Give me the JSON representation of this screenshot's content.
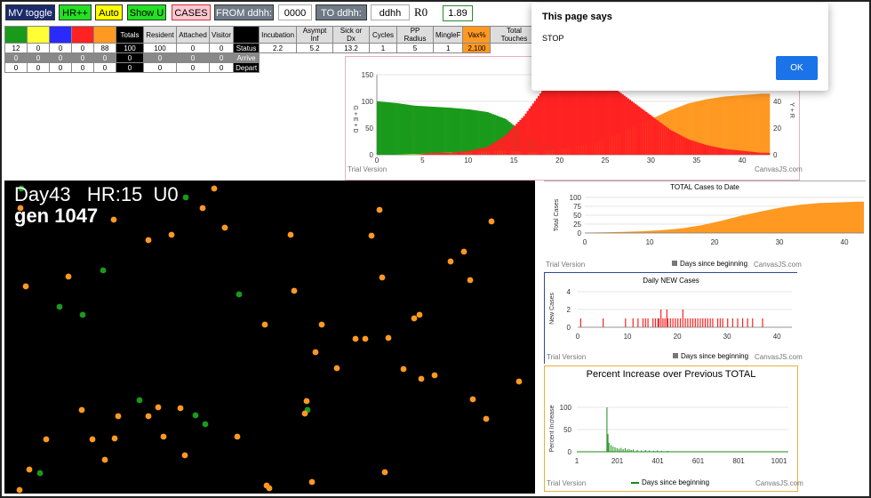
{
  "toolbar": {
    "mv_toggle": "MV toggle",
    "hr_plus": "HR++",
    "auto": "Auto",
    "show_u": "Show U",
    "cases": "CASES",
    "from_label": "FROM ddhh:",
    "from_value": "0000",
    "to_label": "TO ddhh:",
    "to_value": "ddhh",
    "r0_label": "R0",
    "r0_value": "1.89"
  },
  "stats": {
    "header": [
      "",
      "",
      "",
      "",
      "",
      "Totals",
      "Resident",
      "Attached",
      "Visitor",
      "",
      "Incubation",
      "Asympt Inf",
      "Sick or Dx",
      "Cycles",
      "PP Radius",
      "MingleF",
      "Vax%",
      "Total Touches"
    ],
    "row1": [
      "12",
      "0",
      "0",
      "0",
      "88",
      "100",
      "100",
      "0",
      "0",
      "Status",
      "2.2",
      "5.2",
      "13.2",
      "1",
      "5",
      "1",
      "2,100",
      ""
    ],
    "row2": [
      "0",
      "0",
      "0",
      "0",
      "0",
      "0",
      "0",
      "0",
      "0",
      "Arrive"
    ],
    "row3": [
      "0",
      "0",
      "0",
      "0",
      "0",
      "0",
      "0",
      "0",
      "0",
      "Depart"
    ]
  },
  "sim": {
    "day_line": "Day43   HR:15  U0",
    "gen_line": "gen 1047"
  },
  "dialog": {
    "title": "This page says",
    "message": "STOP",
    "ok": "OK"
  },
  "colors": {
    "green": "#1a9a1a",
    "yellow": "#ffff33",
    "red": "#ff2222",
    "orange": "#ff9922",
    "ok_blue": "#1a73e8"
  },
  "chart_data": [
    {
      "type": "area",
      "title": "",
      "xlabel": "",
      "ylabel_left": "G + E + D",
      "ylabel_right": "Y + R",
      "xlim": [
        0,
        43
      ],
      "ylim_left": [
        0,
        150
      ],
      "ylim_right": [
        0,
        60
      ],
      "xticks": [
        "0",
        "5",
        "10",
        "15",
        "20",
        "25",
        "30",
        "35",
        "40"
      ],
      "yticks_left": [
        "0",
        "50",
        "100",
        "150"
      ],
      "yticks_right": [
        "0",
        "20",
        "40"
      ],
      "series": [
        {
          "name": "green",
          "x": [
            0,
            2,
            4,
            6,
            8,
            10,
            12,
            14,
            16,
            18,
            20,
            22,
            24,
            26,
            28,
            30,
            32,
            34,
            36,
            38,
            40,
            42,
            43
          ],
          "values": [
            100,
            97,
            92,
            90,
            88,
            85,
            80,
            67,
            40,
            20,
            8,
            3,
            1,
            0,
            0,
            0,
            0,
            0,
            0,
            0,
            0,
            0,
            0
          ]
        },
        {
          "name": "yellow",
          "x": [
            0,
            2,
            4,
            6,
            8,
            10,
            12,
            14,
            16,
            18,
            20,
            22,
            24,
            26,
            28,
            30,
            32,
            34,
            36,
            38,
            40,
            42,
            43
          ],
          "values": [
            0,
            0,
            1,
            3,
            4,
            5,
            6,
            8,
            5,
            3,
            2,
            1,
            0,
            0,
            0,
            0,
            0,
            0,
            0,
            0,
            0,
            0,
            0
          ]
        },
        {
          "name": "red",
          "x": [
            0,
            2,
            4,
            6,
            8,
            10,
            12,
            14,
            16,
            18,
            20,
            22,
            24,
            26,
            28,
            30,
            32,
            34,
            36,
            38,
            40,
            42,
            43
          ],
          "values": [
            0,
            0,
            0,
            1,
            1,
            2,
            4,
            10,
            20,
            33,
            38,
            40,
            38,
            34,
            27,
            20,
            13,
            8,
            5,
            3,
            2,
            1,
            1
          ]
        },
        {
          "name": "orange",
          "x": [
            0,
            2,
            4,
            6,
            8,
            10,
            12,
            14,
            16,
            18,
            20,
            22,
            24,
            26,
            28,
            30,
            32,
            34,
            36,
            38,
            40,
            42,
            43
          ],
          "values": [
            0,
            0,
            0,
            0,
            0,
            0,
            1,
            2,
            3,
            5,
            8,
            12,
            18,
            28,
            40,
            52,
            64,
            74,
            80,
            84,
            86,
            88,
            88
          ]
        }
      ],
      "watermark": "Trial Version",
      "credit": "CanvasJS.com"
    },
    {
      "type": "area",
      "title": "TOTAL Cases to Date",
      "xlabel": "Days since beginning",
      "ylabel": "Total Cases",
      "xlim": [
        0,
        43
      ],
      "ylim": [
        0,
        100
      ],
      "xticks": [
        "0",
        "10",
        "20",
        "30",
        "40"
      ],
      "yticks": [
        "0",
        "25",
        "50",
        "75",
        "100"
      ],
      "x": [
        0,
        3,
        6,
        9,
        12,
        15,
        18,
        21,
        24,
        27,
        30,
        33,
        36,
        39,
        42,
        43
      ],
      "values": [
        1,
        2,
        3,
        5,
        8,
        13,
        22,
        34,
        48,
        60,
        71,
        79,
        84,
        86,
        88,
        88
      ],
      "watermark": "Trial Version",
      "credit": "CanvasJS.com"
    },
    {
      "type": "bar",
      "title": "Daily NEW Cases",
      "xlabel": "Days since beginning",
      "ylabel": "New Cases",
      "xlim": [
        0,
        43
      ],
      "ylim": [
        0,
        4
      ],
      "xticks": [
        "0",
        "10",
        "20",
        "30",
        "40"
      ],
      "yticks": [
        "0",
        "2",
        "4"
      ],
      "x": [
        0.5,
        5,
        9.5,
        11,
        12,
        13,
        13.5,
        14,
        15,
        15.5,
        16,
        16.2,
        16.6,
        17,
        17.4,
        17.8,
        18,
        18.5,
        19,
        19.5,
        20,
        20.5,
        21,
        21.5,
        22,
        22.5,
        23,
        23.5,
        24,
        24.5,
        25,
        25.5,
        26,
        26.5,
        27,
        28,
        28.5,
        29,
        30,
        31,
        32,
        33,
        34,
        35,
        37
      ],
      "values": [
        1,
        1,
        1,
        1,
        1,
        1,
        1,
        1,
        1,
        1,
        1,
        1,
        2,
        1,
        1,
        2,
        1,
        1,
        1,
        1,
        1,
        1,
        2,
        1,
        1,
        1,
        1,
        1,
        1,
        1,
        1,
        1,
        1,
        1,
        1,
        1,
        1,
        1,
        1,
        1,
        1,
        1,
        1,
        1,
        1
      ],
      "watermark": "Trial Version",
      "credit": "CanvasJS.com"
    },
    {
      "type": "bar",
      "title": "Percent Increase over Previous TOTAL",
      "xlabel": "Days since beginning",
      "ylabel": "Percent Increase",
      "xlim": [
        1,
        1047
      ],
      "ylim": [
        0,
        100
      ],
      "xticks": [
        "1",
        "201",
        "401",
        "601",
        "801",
        "1001"
      ],
      "yticks": [
        "0",
        "50",
        "100"
      ],
      "x": [
        150,
        155,
        160,
        170,
        180,
        190,
        200,
        210,
        220,
        230,
        240,
        250,
        260,
        270,
        280,
        300,
        320,
        340,
        360,
        380,
        400,
        420,
        450,
        480,
        520,
        560,
        600,
        650,
        700,
        760,
        820,
        880,
        950,
        1000
      ],
      "values": [
        100,
        40,
        20,
        15,
        12,
        10,
        8,
        7,
        9,
        6,
        8,
        5,
        6,
        4,
        5,
        4,
        3,
        4,
        3,
        2,
        3,
        2,
        2,
        1,
        1,
        1,
        1,
        1,
        1,
        1,
        1,
        1,
        1,
        1
      ],
      "legend": "Days since beginning",
      "watermark": "Trial Version",
      "credit": "CanvasJS.com"
    }
  ]
}
